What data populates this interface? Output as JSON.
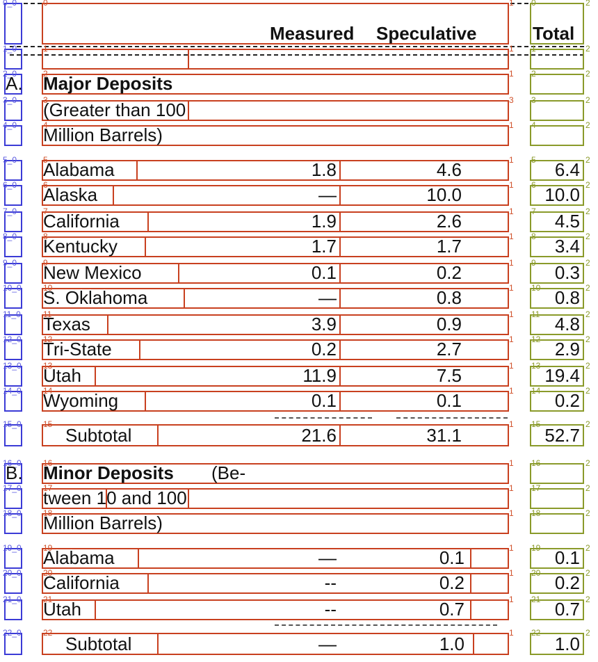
{
  "header": {
    "measured": "Measured",
    "speculative": "Speculative",
    "total": "Total"
  },
  "sections": [
    {
      "letter": "A.",
      "title_bold": "Major Deposits",
      "title_rest": "",
      "lines": [
        "(Greater than 100",
        "Million Barrels)"
      ]
    },
    {
      "letter": "B.",
      "title_bold": "Minor Deposits",
      "title_rest": " (Be-",
      "lines": [
        "tween 10 and 100",
        "Million Barrels)"
      ]
    }
  ],
  "major_rows": [
    {
      "state": "Alabama",
      "measured": "1.8",
      "speculative": "4.6",
      "total": "6.4"
    },
    {
      "state": "Alaska",
      "measured": "—",
      "speculative": "10.0",
      "total": "10.0"
    },
    {
      "state": "California",
      "measured": "1.9",
      "speculative": "2.6",
      "total": "4.5"
    },
    {
      "state": "Kentucky",
      "measured": "1.7",
      "speculative": "1.7",
      "total": "3.4"
    },
    {
      "state": "New Mexico",
      "measured": "0.1",
      "speculative": "0.2",
      "total": "0.3"
    },
    {
      "state": "S. Oklahoma",
      "measured": "—",
      "speculative": "0.8",
      "total": "0.8"
    },
    {
      "state": "Texas",
      "measured": "3.9",
      "speculative": "0.9",
      "total": "4.8"
    },
    {
      "state": "Tri-State",
      "measured": "0.2",
      "speculative": "2.7",
      "total": "2.9"
    },
    {
      "state": "Utah",
      "measured": "11.9",
      "speculative": "7.5",
      "total": "19.4"
    },
    {
      "state": "Wyoming",
      "measured": "0.1",
      "speculative": "0.1",
      "total": "0.2"
    }
  ],
  "major_subtotal": {
    "label": "Subtotal",
    "measured": "21.6",
    "speculative": "31.1",
    "total": "52.7"
  },
  "minor_rows": [
    {
      "state": "Alabama",
      "measured": "—",
      "speculative": "0.1",
      "total": "0.1"
    },
    {
      "state": "California",
      "measured": "--",
      "speculative": "0.2",
      "total": "0.2"
    },
    {
      "state": "Utah",
      "measured": "--",
      "speculative": "0.7",
      "total": "0.7"
    }
  ],
  "minor_subtotal": {
    "label": "Subtotal",
    "measured": "—",
    "speculative": "1.0",
    "total": "1.0"
  },
  "overlay": {
    "colors": {
      "left": "#3b3bd6",
      "middle": "#c8401f",
      "right": "#8a9a2a"
    },
    "labels": [
      {
        "left": "0_0",
        "mid": "0",
        "mid2": "1",
        "right_a": "0",
        "right_b": "2"
      },
      {
        "left": "1_0",
        "mid": "1",
        "mid2": "1",
        "mid3": "1",
        "right_a": "1",
        "right_b": "2"
      },
      {
        "left": "2_0",
        "mid": "2",
        "mid2": "1",
        "right_a": "2",
        "right_b": "2"
      },
      {
        "left": "3_0",
        "mid": "3",
        "mid2": "3",
        "mid3": "1",
        "right_a": "3",
        "right_b": "2"
      },
      {
        "left": "4_0",
        "mid": "4",
        "mid2": "1",
        "right_a": "4",
        "right_b": "2"
      },
      {
        "left": "5_0",
        "mid": "5",
        "mid2": "5",
        "mid3": "5",
        "mid4": "1",
        "right_a": "5",
        "right_b": "2"
      },
      {
        "left": "6_0",
        "mid": "6",
        "mid2": "6",
        "mid3": "6",
        "mid4": "1",
        "right_a": "6",
        "right_b": "2"
      },
      {
        "left": "7_0",
        "mid": "7",
        "mid2": "7",
        "mid3": "7",
        "mid4": "1",
        "right_a": "7",
        "right_b": "2"
      },
      {
        "left": "8_0",
        "mid": "8",
        "mid2": "8",
        "mid3": "8",
        "mid4": "1",
        "right_a": "8",
        "right_b": "2"
      },
      {
        "left": "9_0",
        "mid": "9",
        "mid2": "9",
        "mid3": "9",
        "mid4": "1",
        "right_a": "9",
        "right_b": "2"
      },
      {
        "left": "10_0",
        "mid": "10",
        "mid2": "10",
        "mid3": "10",
        "mid4": "1",
        "right_a": "10",
        "right_b": "2"
      },
      {
        "left": "11_0",
        "mid": "11",
        "mid2": "11",
        "mid3": "11",
        "mid4": "1",
        "right_a": "11",
        "right_b": "2"
      },
      {
        "left": "12_0",
        "mid": "12",
        "mid2": "12",
        "mid3": "12",
        "mid4": "1",
        "right_a": "12",
        "right_b": "2"
      },
      {
        "left": "13_0",
        "mid": "13",
        "mid2": "13",
        "mid3": "13",
        "mid4": "1",
        "right_a": "13",
        "right_b": "2"
      },
      {
        "left": "14_0",
        "mid": "14",
        "mid2": "14",
        "mid3": "14",
        "mid4": "1",
        "right_a": "14",
        "right_b": "2"
      },
      {
        "left": "15_0",
        "mid": "15",
        "mid2": "15",
        "mid3": "15",
        "mid4": "1",
        "right_a": "15",
        "right_b": "2"
      },
      {
        "left": "16_0",
        "mid": "16",
        "mid2": "1",
        "right_a": "16",
        "right_b": "2"
      },
      {
        "left": "17_0",
        "mid": "17",
        "mid2": "17",
        "mid3": "17",
        "mid4": "1",
        "right_a": "17",
        "right_b": "2"
      },
      {
        "left": "18_0",
        "mid": "18",
        "mid2": "1",
        "right_a": "18",
        "right_b": "2"
      },
      {
        "left": "19_0",
        "mid": "19",
        "mid2": "19",
        "mid3": "19",
        "mid4": "1",
        "right_a": "19",
        "right_b": "2"
      },
      {
        "left": "20_0",
        "mid": "20",
        "mid2": "20",
        "mid3": "20",
        "mid4": "1",
        "right_a": "20",
        "right_b": "2"
      },
      {
        "left": "21_0",
        "mid": "21",
        "mid2": "21",
        "mid3": "21",
        "mid4": "1",
        "right_a": "21",
        "right_b": "2"
      },
      {
        "left": "22_0",
        "mid": "22",
        "mid2": "22",
        "mid3": "22",
        "mid4": "1",
        "right_a": "22",
        "right_b": "2"
      }
    ]
  }
}
